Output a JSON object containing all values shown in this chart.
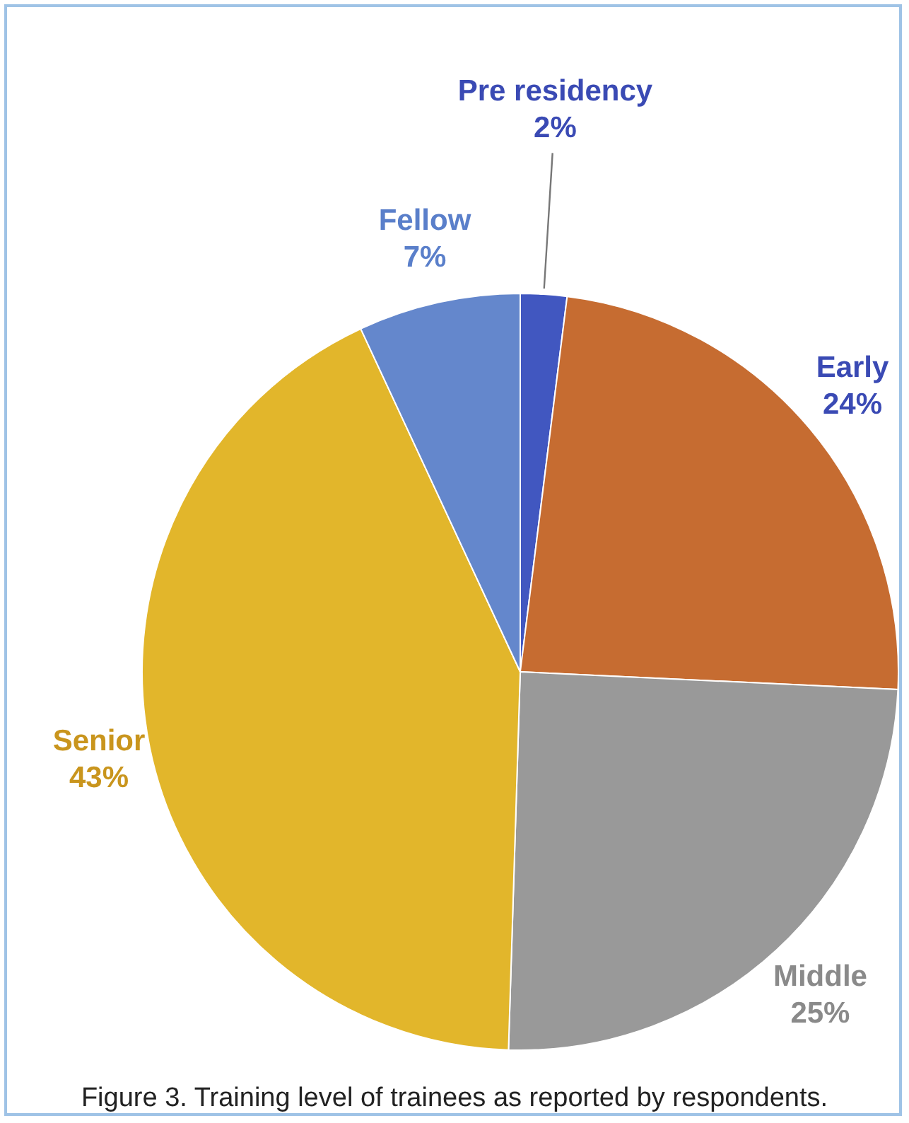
{
  "chart_data": {
    "type": "pie",
    "categories": [
      "Pre residency",
      "Early",
      "Middle",
      "Senior",
      "Fellow"
    ],
    "values": [
      2,
      24,
      25,
      43,
      7
    ],
    "colors": [
      "#4157c0",
      "#c66c31",
      "#999999",
      "#e2b62b",
      "#6487cc"
    ],
    "value_labels": [
      "2%",
      "24%",
      "25%",
      "43%",
      "7%"
    ],
    "legend": false,
    "annotations": [
      "Figure 3. Training level of trainees as reported by respondents."
    ]
  }
}
